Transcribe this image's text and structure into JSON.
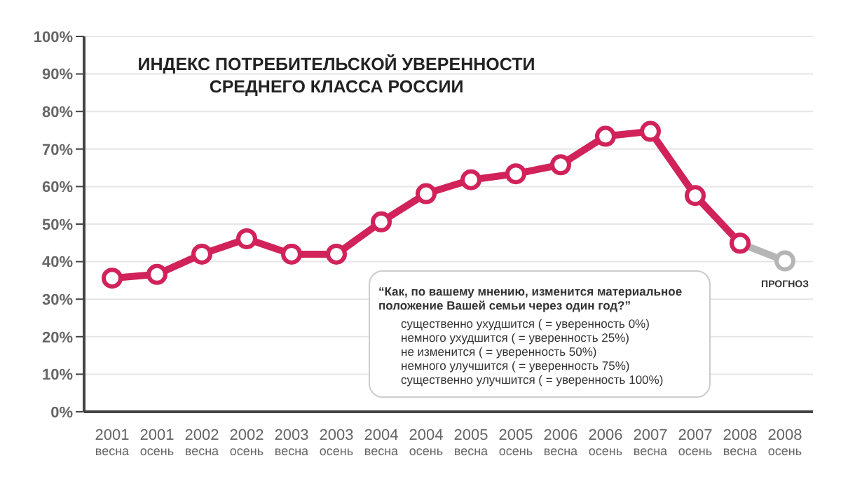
{
  "chart_data": {
    "type": "line",
    "title": "ИНДЕКС ПОТРЕБИТЕЛЬСКОЙ УВЕРЕННОСТИ СРЕДНЕГО КЛАССА РОССИИ",
    "categories": [
      "2001\nвесна",
      "2001\nосень",
      "2002\nвесна",
      "2002\nосень",
      "2003\nвесна",
      "2003\nосень",
      "2004\nвесна",
      "2004\nосень",
      "2005\nвесна",
      "2005\nосень",
      "2006\nвесна",
      "2006\nосень",
      "2007\nвесна",
      "2007\nосень",
      "2008\nвесна",
      "2008\nосень"
    ],
    "series": [
      {
        "color": "#b5b5b5",
        "values": [
          null,
          null,
          null,
          null,
          null,
          null,
          null,
          null,
          null,
          null,
          null,
          null,
          null,
          null,
          44.9,
          40.2
        ]
      },
      {
        "color": "#d1225a",
        "values": [
          35.6,
          36.6,
          42,
          46.1,
          42,
          42,
          50.6,
          58.1,
          61.8,
          63.4,
          65.8,
          73.4,
          74.7,
          57.6,
          44.9,
          null
        ]
      }
    ],
    "ylim": [
      0,
      100
    ],
    "yticks": [
      {
        "value": 0,
        "label": "0%"
      },
      {
        "value": 10,
        "label": "10%"
      },
      {
        "value": 20,
        "label": "20%"
      },
      {
        "value": 30,
        "label": "30%"
      },
      {
        "value": 40,
        "label": "40%"
      },
      {
        "value": 50,
        "label": "50%"
      },
      {
        "value": 60,
        "label": "60%"
      },
      {
        "value": 70,
        "label": "70%"
      },
      {
        "value": 80,
        "label": "80%"
      },
      {
        "value": 90,
        "label": "90%"
      },
      {
        "value": 100,
        "label": "100%"
      }
    ],
    "grid": "y",
    "marker": "circle",
    "line_style": "solid",
    "legend": false,
    "annotations": [
      {
        "text": "ПРОГНОЗ",
        "x": "2008\nосень",
        "y": 40.2
      },
      "“Как, по вашему мнению, изменится материальное положение Вашей семьи через один год?”",
      "существенно ухудшится ( = уверенность 0%)",
      "немного ухудшится ( = уверенность 25%)",
      "не изменится ( = уверенность 50%)",
      "немного улучшится ( = уверенность 75%)",
      "существенно улучшится ( = уверенность 100%)"
    ]
  }
}
